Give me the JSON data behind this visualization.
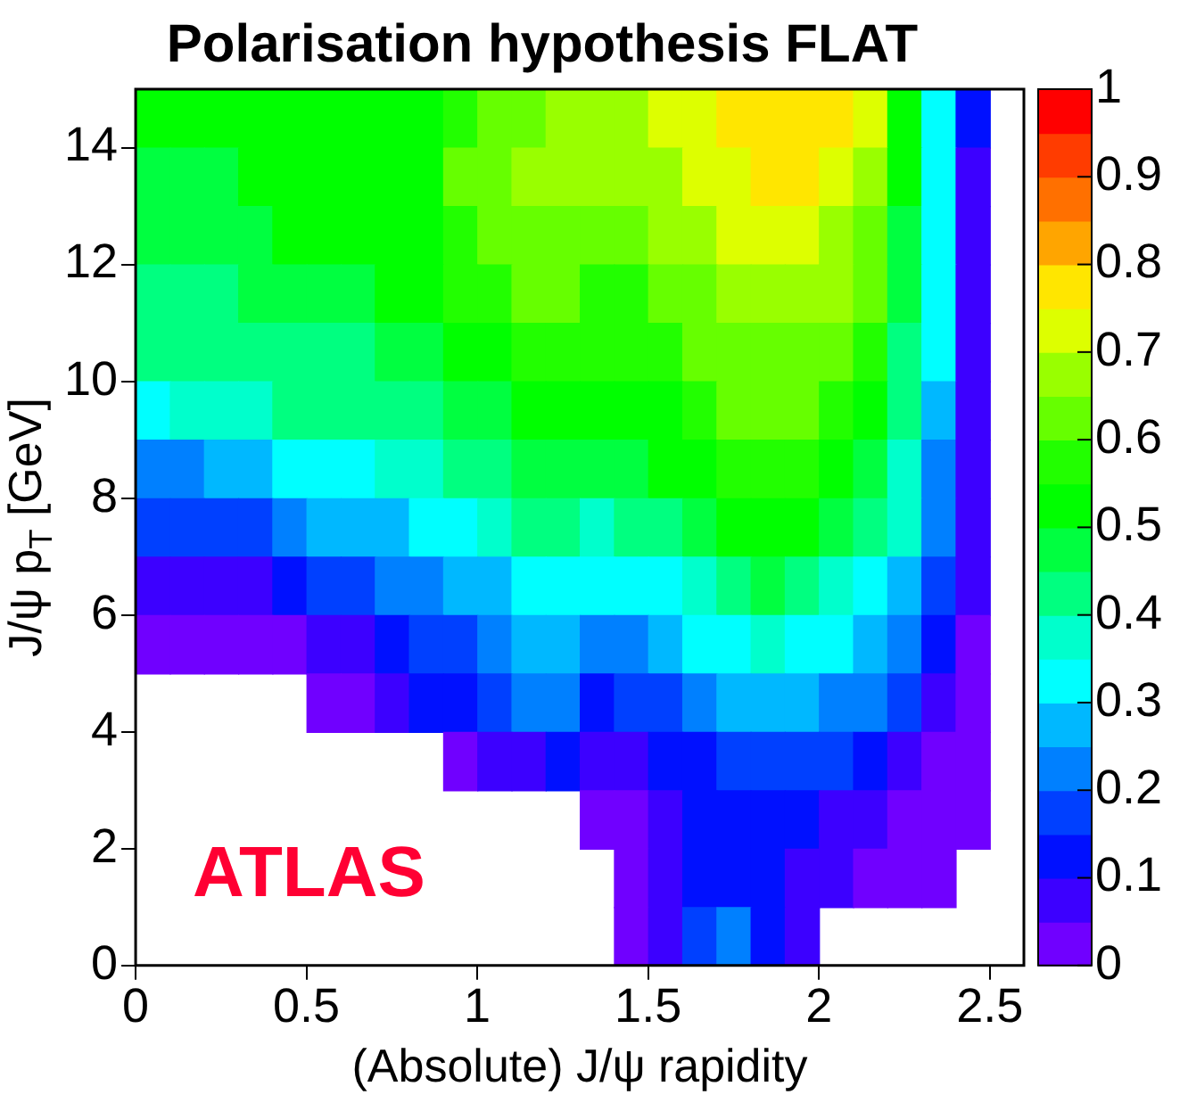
{
  "chart_data": {
    "type": "heatmap",
    "title": "Polarisation hypothesis FLAT",
    "xlabel": "(Absolute) J/ψ rapidity",
    "ylabel": "J/ψ p$_{T}$ [GeV]",
    "x": [
      0.05,
      0.15,
      0.25,
      0.35,
      0.45,
      0.55,
      0.65,
      0.75,
      0.85,
      0.95,
      1.05,
      1.15,
      1.25,
      1.35,
      1.45,
      1.55,
      1.65,
      1.75,
      1.85,
      1.95,
      2.05,
      2.15,
      2.25,
      2.35,
      2.45,
      2.55
    ],
    "y": [
      14.5,
      13.5,
      12.5,
      11.5,
      10.5,
      9.5,
      8.5,
      7.5,
      6.5,
      5.5,
      4.5,
      3.5,
      2.5,
      1.5,
      0.5
    ],
    "cells": [
      [
        0.51,
        0.51,
        0.51,
        0.51,
        0.51,
        0.51,
        0.51,
        0.51,
        0.51,
        0.56,
        0.61,
        0.61,
        0.66,
        0.66,
        0.66,
        0.71,
        0.71,
        0.76,
        0.76,
        0.76,
        0.76,
        0.71,
        0.51,
        0.31,
        0.11,
        null
      ],
      [
        0.46,
        0.46,
        0.46,
        0.51,
        0.51,
        0.51,
        0.51,
        0.51,
        0.51,
        0.61,
        0.61,
        0.66,
        0.66,
        0.66,
        0.66,
        0.66,
        0.71,
        0.71,
        0.76,
        0.76,
        0.71,
        0.66,
        0.51,
        0.31,
        0.06,
        null
      ],
      [
        0.46,
        0.46,
        0.46,
        0.46,
        0.51,
        0.51,
        0.51,
        0.51,
        0.51,
        0.56,
        0.61,
        0.61,
        0.61,
        0.61,
        0.61,
        0.66,
        0.66,
        0.71,
        0.71,
        0.71,
        0.66,
        0.61,
        0.46,
        0.31,
        0.06,
        null
      ],
      [
        0.41,
        0.41,
        0.41,
        0.46,
        0.46,
        0.46,
        0.46,
        0.51,
        0.51,
        0.56,
        0.56,
        0.61,
        0.61,
        0.56,
        0.56,
        0.61,
        0.61,
        0.66,
        0.66,
        0.66,
        0.66,
        0.61,
        0.46,
        0.31,
        0.06,
        null
      ],
      [
        0.41,
        0.41,
        0.41,
        0.41,
        0.41,
        0.41,
        0.41,
        0.46,
        0.46,
        0.51,
        0.51,
        0.56,
        0.56,
        0.56,
        0.56,
        0.56,
        0.61,
        0.61,
        0.61,
        0.61,
        0.61,
        0.56,
        0.41,
        0.31,
        0.06,
        null
      ],
      [
        0.31,
        0.36,
        0.36,
        0.36,
        0.41,
        0.41,
        0.41,
        0.41,
        0.41,
        0.46,
        0.46,
        0.51,
        0.51,
        0.51,
        0.51,
        0.51,
        0.56,
        0.61,
        0.61,
        0.61,
        0.56,
        0.51,
        0.41,
        0.26,
        0.06,
        null
      ],
      [
        0.21,
        0.21,
        0.26,
        0.26,
        0.31,
        0.31,
        0.31,
        0.36,
        0.36,
        0.41,
        0.41,
        0.46,
        0.46,
        0.46,
        0.46,
        0.51,
        0.51,
        0.56,
        0.56,
        0.56,
        0.51,
        0.46,
        0.36,
        0.21,
        0.06,
        null
      ],
      [
        0.16,
        0.16,
        0.16,
        0.16,
        0.21,
        0.26,
        0.26,
        0.26,
        0.31,
        0.31,
        0.36,
        0.41,
        0.41,
        0.36,
        0.41,
        0.41,
        0.46,
        0.51,
        0.51,
        0.51,
        0.46,
        0.41,
        0.36,
        0.21,
        0.06,
        null
      ],
      [
        0.06,
        0.06,
        0.06,
        0.06,
        0.11,
        0.16,
        0.16,
        0.21,
        0.21,
        0.26,
        0.26,
        0.31,
        0.31,
        0.31,
        0.31,
        0.31,
        0.36,
        0.41,
        0.46,
        0.41,
        0.36,
        0.31,
        0.26,
        0.16,
        0.06,
        null
      ],
      [
        0.01,
        0.01,
        0.01,
        0.01,
        0.01,
        0.06,
        0.06,
        0.11,
        0.16,
        0.16,
        0.21,
        0.26,
        0.26,
        0.21,
        0.21,
        0.26,
        0.31,
        0.31,
        0.36,
        0.31,
        0.31,
        0.26,
        0.21,
        0.11,
        0.01,
        null
      ],
      [
        null,
        null,
        null,
        null,
        null,
        0.01,
        0.01,
        0.06,
        0.11,
        0.11,
        0.16,
        0.21,
        0.21,
        0.11,
        0.16,
        0.16,
        0.21,
        0.26,
        0.26,
        0.26,
        0.21,
        0.21,
        0.16,
        0.06,
        0.01,
        null
      ],
      [
        null,
        null,
        null,
        null,
        null,
        null,
        null,
        null,
        null,
        0.01,
        0.06,
        0.06,
        0.11,
        0.06,
        0.06,
        0.11,
        0.11,
        0.16,
        0.16,
        0.16,
        0.16,
        0.11,
        0.06,
        0.01,
        0.01,
        null
      ],
      [
        null,
        null,
        null,
        null,
        null,
        null,
        null,
        null,
        null,
        null,
        null,
        null,
        null,
        0.01,
        0.01,
        0.06,
        0.11,
        0.11,
        0.11,
        0.11,
        0.06,
        0.06,
        0.01,
        0.01,
        0.01,
        null
      ],
      [
        null,
        null,
        null,
        null,
        null,
        null,
        null,
        null,
        null,
        null,
        null,
        null,
        null,
        null,
        0.01,
        0.06,
        0.11,
        0.11,
        0.11,
        0.06,
        0.06,
        0.01,
        0.01,
        0.01,
        null,
        null
      ],
      [
        null,
        null,
        null,
        null,
        null,
        null,
        null,
        null,
        null,
        null,
        null,
        null,
        null,
        null,
        0.01,
        0.06,
        0.16,
        0.21,
        0.11,
        0.06,
        null,
        null,
        null,
        null,
        null,
        null
      ]
    ],
    "xlim": [
      0,
      2.6
    ],
    "ylim": [
      0,
      15
    ],
    "xticks": [
      0,
      0.5,
      1,
      1.5,
      2,
      2.5
    ],
    "yticks": [
      0,
      2,
      4,
      6,
      8,
      10,
      12,
      14
    ],
    "clim": [
      0,
      1
    ],
    "cticks": [
      0,
      0.1,
      0.2,
      0.3,
      0.4,
      0.5,
      0.6,
      0.7,
      0.8,
      0.9,
      1
    ],
    "annotations": [
      "ATLAS"
    ]
  }
}
